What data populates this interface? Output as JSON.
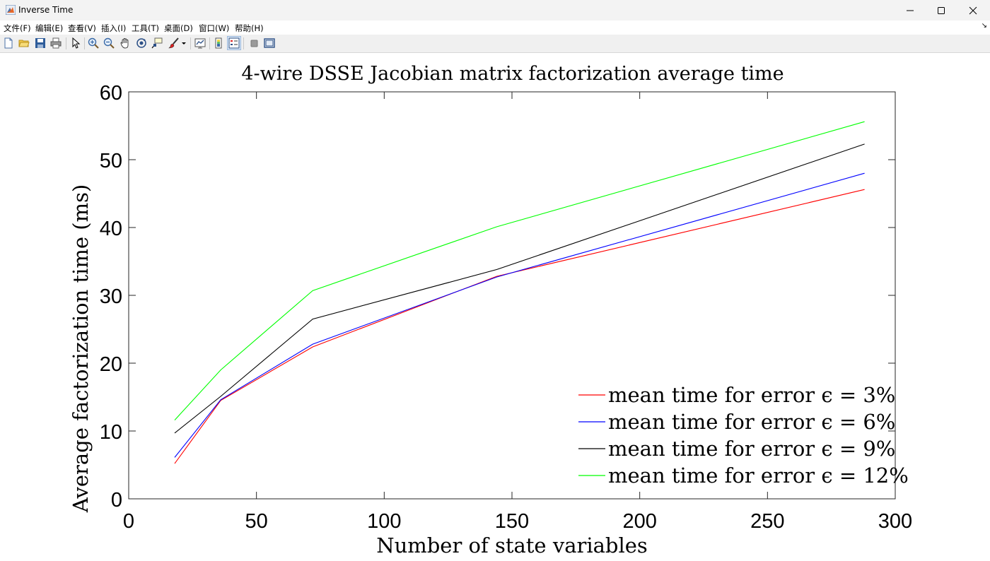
{
  "window": {
    "title": "Inverse Time",
    "controls": [
      "minimize",
      "maximize",
      "close"
    ]
  },
  "menu": {
    "items": [
      "文件(F)",
      "编辑(E)",
      "查看(V)",
      "插入(I)",
      "工具(T)",
      "桌面(D)",
      "窗口(W)",
      "帮助(H)"
    ]
  },
  "toolbar": {
    "icons": [
      "new-figure-icon",
      "open-icon",
      "save-icon",
      "print-icon",
      "select-arrow-icon",
      "zoom-in-icon",
      "zoom-out-icon",
      "pan-hand-icon",
      "rotate-3d-icon",
      "data-cursor-icon",
      "brush-icon",
      "brush-dropdown-icon",
      "link-plot-icon",
      "colorbar-icon",
      "legend-icon",
      "hide-plot-tools-icon",
      "show-plot-tools-icon"
    ]
  },
  "chart_data": {
    "type": "line",
    "title": "4-wire DSSE Jacobian matrix factorization average time",
    "xlabel": "Number of state variables",
    "ylabel": "Average factorization time (ms)",
    "xlim": [
      0,
      300
    ],
    "ylim": [
      0,
      60
    ],
    "xticks": [
      0,
      50,
      100,
      150,
      200,
      250,
      300
    ],
    "yticks": [
      0,
      10,
      20,
      30,
      40,
      50,
      60
    ],
    "grid": false,
    "legend_position": "bottom-right",
    "x": [
      18,
      36,
      72,
      144,
      288
    ],
    "series": [
      {
        "name": "mean time for error ϵ = 3%",
        "color": "#ff0000",
        "values": [
          5.2,
          14.5,
          22.4,
          32.8,
          45.6
        ]
      },
      {
        "name": "mean time for error ϵ = 6%",
        "color": "#0000ff",
        "values": [
          6.1,
          14.6,
          22.8,
          32.7,
          48.0
        ]
      },
      {
        "name": "mean time for error ϵ = 9%",
        "color": "#000000",
        "values": [
          9.7,
          15.1,
          26.5,
          33.8,
          52.3
        ]
      },
      {
        "name": "mean time for error ϵ = 12%",
        "color": "#00ff00",
        "values": [
          11.6,
          19.0,
          30.7,
          40.1,
          55.6
        ]
      }
    ]
  }
}
